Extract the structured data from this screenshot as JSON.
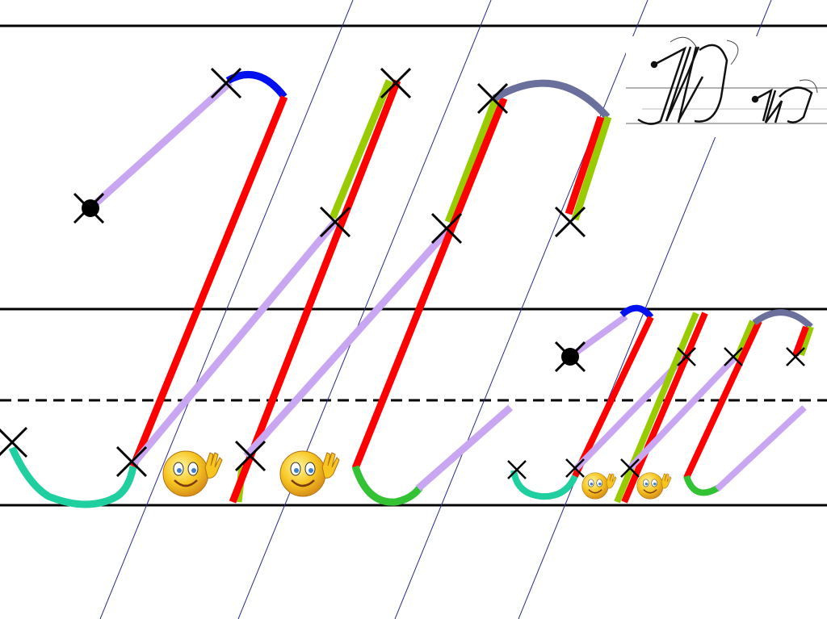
{
  "slide": {
    "sample_lettering": "Жж",
    "colors": {
      "ruling": "#000000",
      "slant_lines": "#2a2a8a",
      "connector": "#c9a6f2",
      "main_stroke": "#ff0000",
      "accent_stroke": "#99cc00",
      "top_arc_blue": "#0010ee",
      "top_arc_slate": "#6b6f9c",
      "hook_teal": "#1fcf9f",
      "hook_green": "#33c233",
      "marker": "#000000",
      "smiley": "#f7c520"
    },
    "icons": [
      "cross-marker-icon",
      "start-dot-icon",
      "waving-smiley-icon"
    ]
  }
}
